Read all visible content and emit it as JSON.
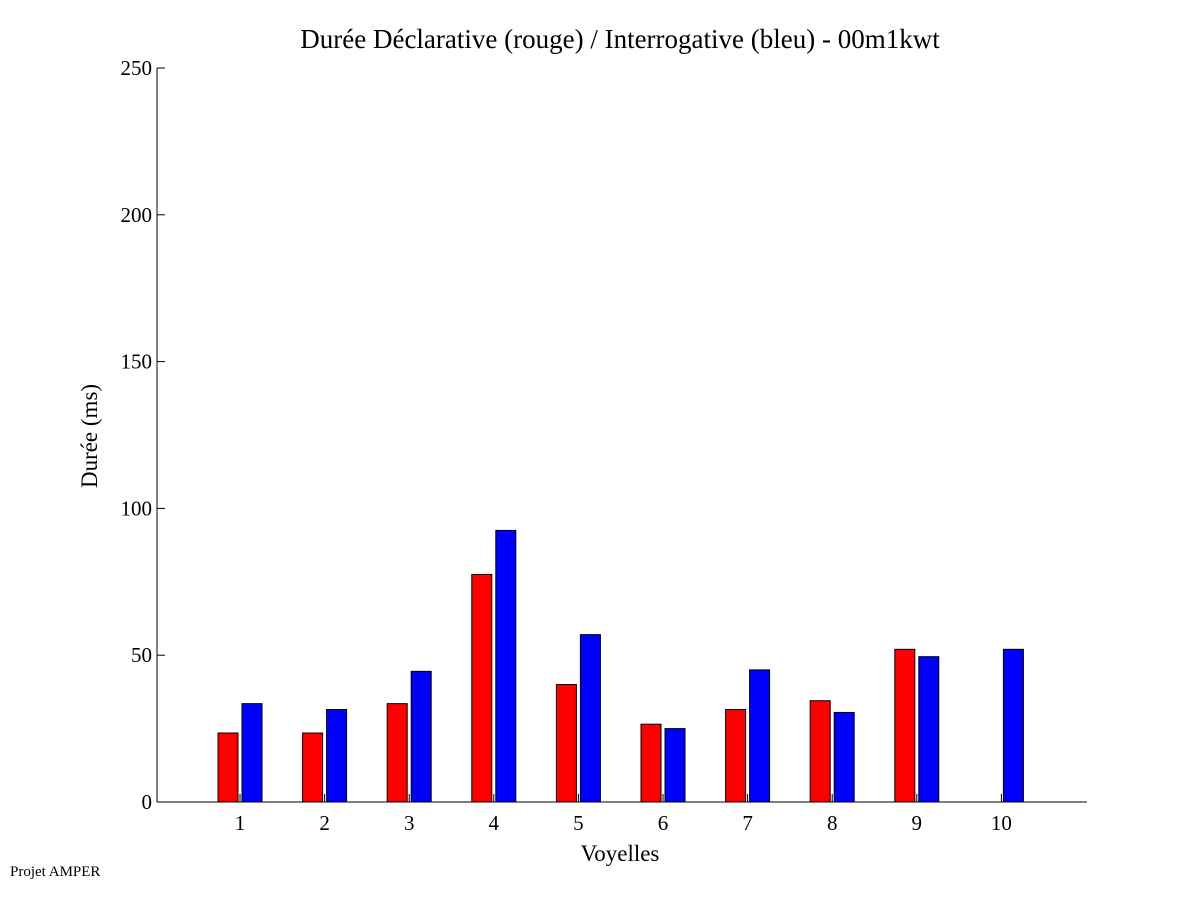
{
  "footer": "Projet AMPER",
  "chart_data": {
    "type": "bar",
    "title": "Durée Déclarative (rouge) / Interrogative (bleu) - 00m1kwt",
    "xlabel": "Voyelles",
    "ylabel": "Durée (ms)",
    "categories": [
      "1",
      "2",
      "3",
      "4",
      "5",
      "6",
      "7",
      "8",
      "9",
      "10"
    ],
    "ylim": [
      0,
      250
    ],
    "yticks": [
      "0",
      "50",
      "100",
      "150",
      "200",
      "250"
    ],
    "grid": false,
    "series": [
      {
        "color": "#ff0000",
        "values": [
          23.5,
          23.5,
          33.5,
          77.5,
          40,
          26.5,
          31.5,
          34.5,
          52,
          0
        ]
      },
      {
        "color": "#0000ff",
        "values": [
          33.5,
          31.5,
          44.5,
          92.5,
          57,
          25,
          45,
          30.5,
          49.5,
          52
        ]
      }
    ]
  }
}
